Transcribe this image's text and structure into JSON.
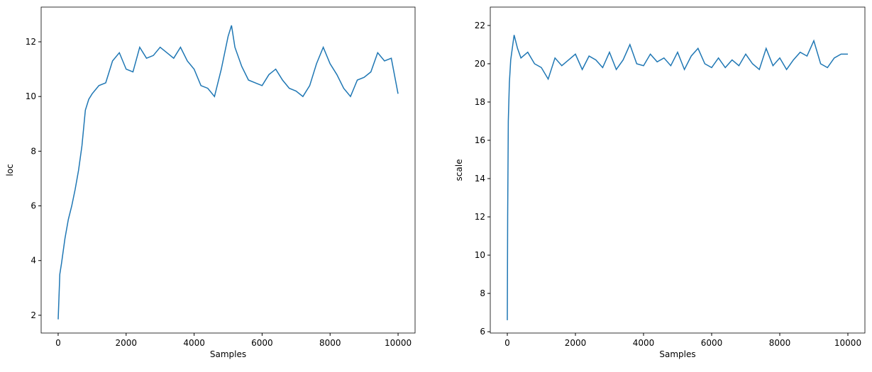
{
  "chart_data": [
    {
      "type": "line",
      "xlabel": "Samples",
      "ylabel": "loc",
      "color": "#1f77b4",
      "x": [
        0,
        50,
        100,
        200,
        300,
        400,
        500,
        600,
        700,
        800,
        900,
        1000,
        1200,
        1400,
        1600,
        1800,
        2000,
        2200,
        2400,
        2600,
        2800,
        3000,
        3200,
        3400,
        3600,
        3800,
        4000,
        4200,
        4400,
        4600,
        4800,
        5000,
        5100,
        5200,
        5400,
        5600,
        5800,
        6000,
        6200,
        6400,
        6600,
        6800,
        7000,
        7200,
        7400,
        7600,
        7800,
        8000,
        8200,
        8400,
        8600,
        8800,
        9000,
        9200,
        9400,
        9600,
        9800,
        10000
      ],
      "values": [
        1.85,
        3.5,
        3.9,
        4.8,
        5.5,
        6.0,
        6.6,
        7.3,
        8.2,
        9.5,
        9.9,
        10.1,
        10.4,
        10.5,
        11.3,
        11.6,
        11.0,
        10.9,
        11.8,
        11.4,
        11.5,
        11.8,
        11.6,
        11.4,
        11.8,
        11.3,
        11.0,
        10.4,
        10.3,
        10.0,
        11.0,
        12.2,
        12.6,
        11.8,
        11.1,
        10.6,
        10.5,
        10.4,
        10.8,
        11.0,
        10.6,
        10.3,
        10.2,
        10.0,
        10.4,
        11.2,
        11.8,
        11.2,
        10.8,
        10.3,
        10.0,
        10.6,
        10.7,
        10.9,
        11.6,
        11.3,
        11.4,
        10.1
      ],
      "xlim": [
        -500,
        10500
      ],
      "xticks": [
        0,
        2000,
        4000,
        6000,
        8000,
        10000
      ],
      "ylim": [
        1.35,
        13.27
      ],
      "yticks": [
        2,
        4,
        6,
        8,
        10,
        12
      ]
    },
    {
      "type": "line",
      "xlabel": "Samples",
      "ylabel": "scale",
      "color": "#1f77b4",
      "x": [
        0,
        10,
        30,
        60,
        100,
        200,
        300,
        400,
        600,
        800,
        1000,
        1200,
        1400,
        1600,
        1800,
        2000,
        2200,
        2400,
        2600,
        2800,
        3000,
        3200,
        3400,
        3600,
        3800,
        4000,
        4200,
        4400,
        4600,
        4800,
        5000,
        5200,
        5400,
        5600,
        5800,
        6000,
        6200,
        6400,
        6600,
        6800,
        7000,
        7200,
        7400,
        7600,
        7800,
        8000,
        8200,
        8400,
        8600,
        8800,
        9000,
        9200,
        9400,
        9600,
        9800,
        10000
      ],
      "values": [
        6.6,
        12,
        17,
        19,
        20.2,
        21.5,
        20.8,
        20.3,
        20.6,
        20.0,
        19.8,
        19.2,
        20.3,
        19.9,
        20.2,
        20.5,
        19.7,
        20.4,
        20.2,
        19.8,
        20.6,
        19.7,
        20.2,
        21.0,
        20.0,
        19.9,
        20.5,
        20.1,
        20.3,
        19.9,
        20.6,
        19.7,
        20.4,
        20.8,
        20.0,
        19.8,
        20.3,
        19.8,
        20.2,
        19.9,
        20.5,
        20.0,
        19.7,
        20.8,
        19.9,
        20.3,
        19.7,
        20.2,
        20.6,
        20.4,
        21.2,
        20.0,
        19.8,
        20.3,
        20.5,
        20.5
      ],
      "xlim": [
        -500,
        10500
      ],
      "xticks": [
        0,
        2000,
        4000,
        6000,
        8000,
        10000
      ],
      "ylim": [
        5.93,
        22.96
      ],
      "yticks": [
        6,
        8,
        10,
        12,
        14,
        16,
        18,
        20,
        22
      ]
    }
  ]
}
